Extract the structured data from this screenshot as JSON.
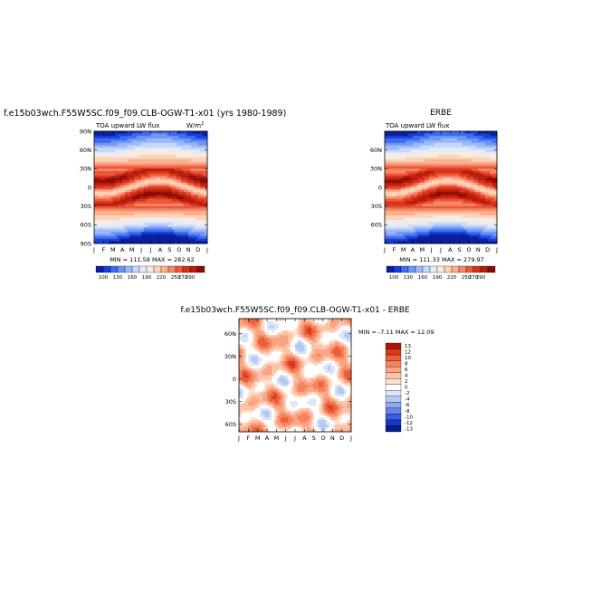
{
  "chart_data": [
    {
      "type": "heatmap",
      "title": "f.e15b03wch.F55W5SC.f09_f09.CLB-OGW-T1-x01 (yrs 1980-1989)",
      "subtitle": "TOA upward LW flux",
      "units": "W/m",
      "units_exp": "2",
      "xlabel": "",
      "ylabel": "",
      "x_ticks": [
        "J",
        "F",
        "M",
        "A",
        "M",
        "J",
        "J",
        "A",
        "S",
        "O",
        "N",
        "D",
        "J"
      ],
      "y_ticks": [
        "90N",
        "60N",
        "30N",
        "0",
        "30S",
        "60S",
        "90S"
      ],
      "stats": "MIN = 111.58  MAX = 282.62",
      "colorbar_labels": [
        "100",
        "130",
        "160",
        "190",
        "220",
        "250",
        "270",
        "290"
      ],
      "min": 111.58,
      "max": 282.62
    },
    {
      "type": "heatmap",
      "title": "ERBE",
      "subtitle": "TOA upward LW flux",
      "xlabel": "",
      "ylabel": "",
      "x_ticks": [
        "J",
        "F",
        "M",
        "A",
        "M",
        "J",
        "J",
        "A",
        "S",
        "O",
        "N",
        "D",
        "J"
      ],
      "y_ticks": [
        "60N",
        "30N",
        "0",
        "30S",
        "60S"
      ],
      "stats": "MIN = 111.33  MAX = 279.97",
      "colorbar_labels": [
        "100",
        "130",
        "160",
        "190",
        "220",
        "250",
        "270",
        "290"
      ],
      "min": 111.33,
      "max": 279.97
    },
    {
      "type": "heatmap",
      "title": "f.e15b03wch.F55W5SC.f09_f09.CLB-OGW-T1-x01  -  ERBE",
      "xlabel": "",
      "ylabel": "",
      "x_ticks": [
        "J",
        "F",
        "M",
        "A",
        "M",
        "J",
        "J",
        "A",
        "S",
        "O",
        "N",
        "D",
        "J"
      ],
      "y_ticks": [
        "60N",
        "30N",
        "0",
        "30S",
        "60S"
      ],
      "stats": "MIN =   -7.11  MAX =   12.09",
      "colorbar_labels": [
        "13",
        "12",
        "10",
        "8",
        "6",
        "4",
        "2",
        "0",
        "-2",
        "-4",
        "-6",
        "-8",
        "-10",
        "-12",
        "-13"
      ],
      "min": -7.11,
      "max": 12.09
    }
  ],
  "colors": {
    "abs_scale": [
      "#0a1f9e",
      "#1640d8",
      "#3e6cf0",
      "#6f96f6",
      "#9cb8f8",
      "#c6d8f8",
      "#e6ecf6",
      "#f8ece2",
      "#fcd2b8",
      "#fbb08e",
      "#f5876a",
      "#ea5838",
      "#d8321c",
      "#b81c0c",
      "#8a0c04"
    ],
    "diff_scale": [
      "#0a1a8a",
      "#1636c8",
      "#3a5ce4",
      "#6482ec",
      "#90a8f2",
      "#b6c8f4",
      "#dce4f6",
      "#ffffff",
      "#fde0d0",
      "#fbc4a8",
      "#f9a482",
      "#f48460",
      "#ec5e3a",
      "#d8381c",
      "#a81608"
    ]
  }
}
